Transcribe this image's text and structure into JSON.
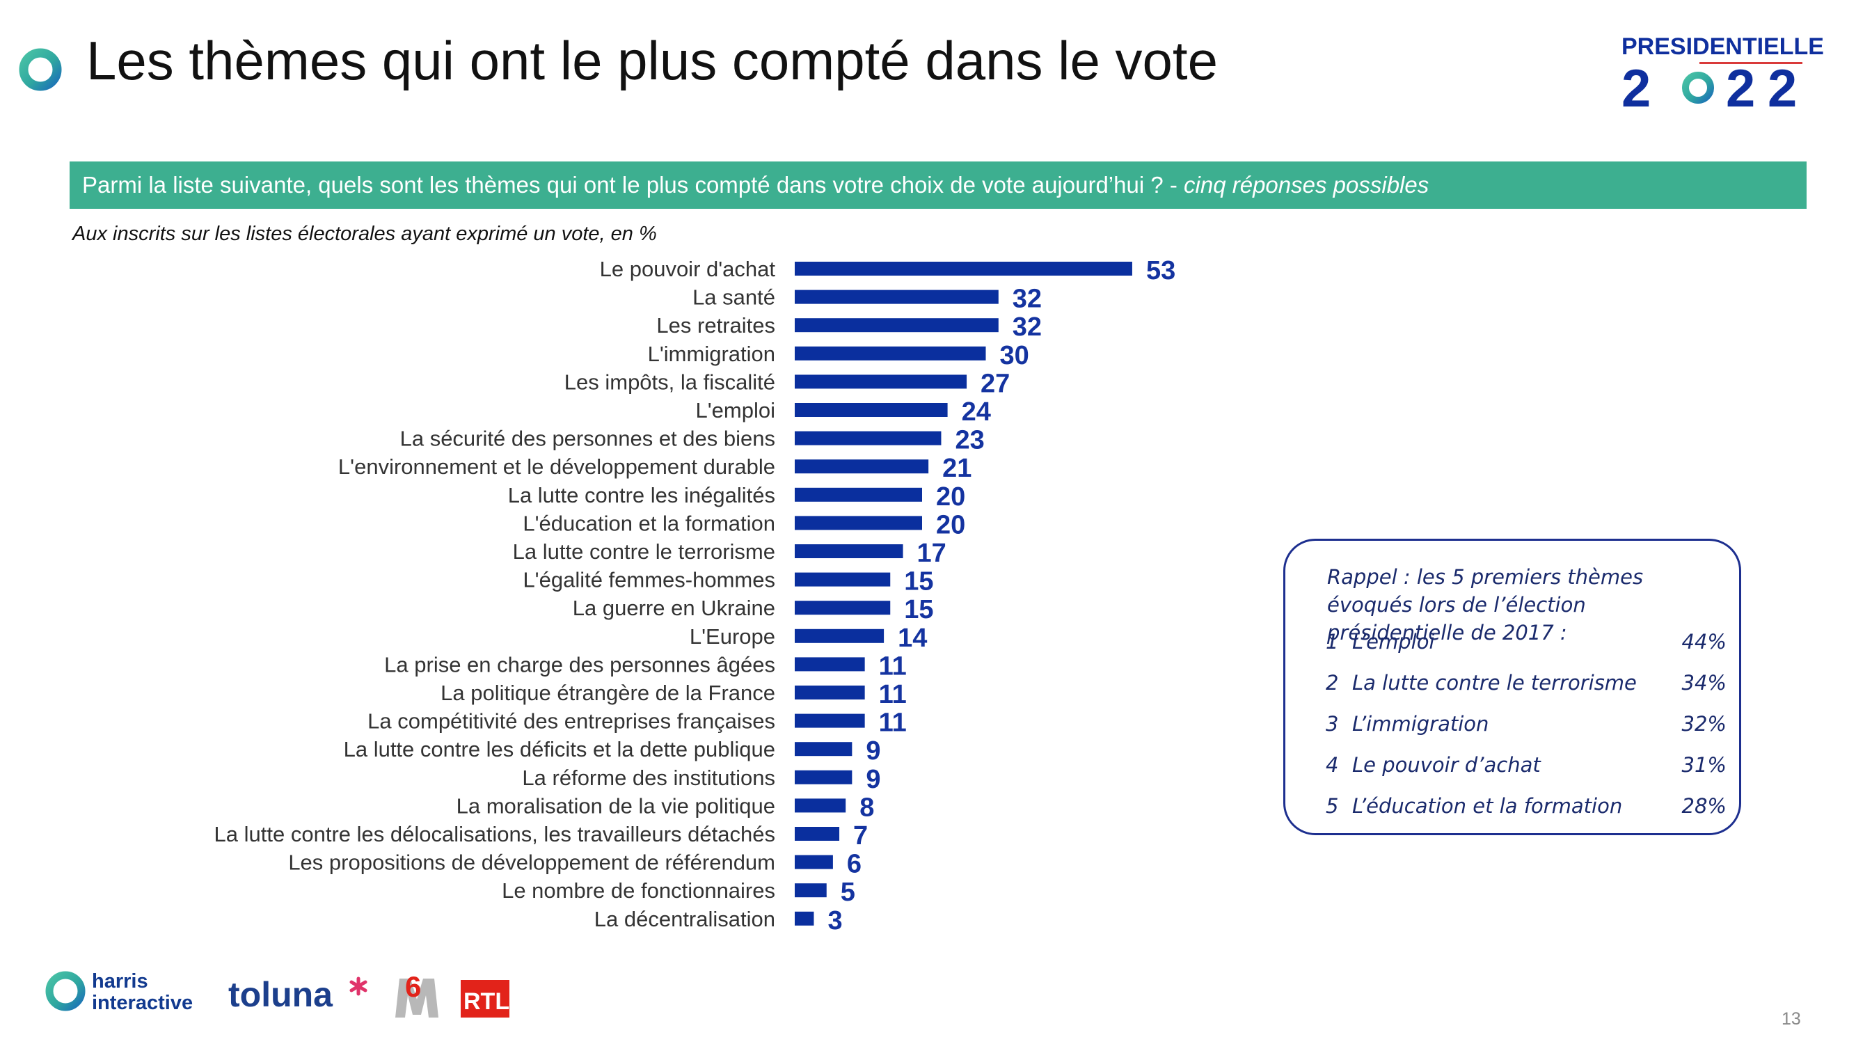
{
  "header": {
    "title": "Les thèmes qui ont le plus compté dans le vote",
    "brand_top": "PRESIDENTIELLE",
    "brand_year": [
      "2",
      "2",
      "2"
    ]
  },
  "question": {
    "text": "Parmi la liste suivante, quels sont les thèmes qui ont le plus compté dans votre choix de vote aujourd’hui ? - ",
    "emphasis": "cinq réponses possibles"
  },
  "subtitle": "Aux inscrits sur les listes électorales ayant exprimé un vote, en %",
  "chart_data": {
    "type": "bar",
    "orientation": "horizontal",
    "categories": [
      "Le pouvoir d'achat",
      "La santé",
      "Les retraites",
      "L'immigration",
      "Les impôts, la fiscalité",
      "L'emploi",
      "La sécurité des personnes et des biens",
      "L'environnement et le développement durable",
      "La lutte contre les inégalités",
      "L'éducation et la formation",
      "La lutte contre le terrorisme",
      "L'égalité femmes-hommes",
      "La guerre en Ukraine",
      "L'Europe",
      "La prise en charge des personnes âgées",
      "La politique étrangère de la France",
      "La compétitivité des entreprises françaises",
      "La lutte contre les déficits et la dette publique",
      "La réforme des institutions",
      "La moralisation de la vie politique",
      "La lutte contre les délocalisations, les travailleurs détachés",
      "Les propositions de développement de référendum",
      "Le nombre de fonctionnaires",
      "La décentralisation"
    ],
    "values": [
      53,
      32,
      32,
      30,
      27,
      24,
      23,
      21,
      20,
      20,
      17,
      15,
      15,
      14,
      11,
      11,
      11,
      9,
      9,
      8,
      7,
      6,
      5,
      3
    ],
    "bar_color": "#0a2f9e",
    "label_color": "#1433a0",
    "xlim": [
      0,
      100
    ]
  },
  "recall": {
    "title": "Rappel : les 5 premiers thèmes évoqués lors de l’élection présidentielle de 2017 :",
    "items": [
      {
        "rank": "1",
        "label": "L’emploi",
        "value": "44%"
      },
      {
        "rank": "2",
        "label": "La lutte contre le terrorisme",
        "value": "34%"
      },
      {
        "rank": "3",
        "label": "L’immigration",
        "value": "32%"
      },
      {
        "rank": "4",
        "label": "Le pouvoir d’achat",
        "value": "31%"
      },
      {
        "rank": "5",
        "label": "L’éducation et la formation",
        "value": "28%"
      }
    ]
  },
  "footer": {
    "logo_harris_line1": "harris",
    "logo_harris_line2": "interactive",
    "logo_toluna": "toluna",
    "logo_m6": "6",
    "logo_rtl": "RTL",
    "page_number": "13"
  },
  "colors": {
    "accent_green": "#3daf90",
    "brand_blue": "#0f2f9e",
    "recall_border": "#1d2f8f"
  }
}
